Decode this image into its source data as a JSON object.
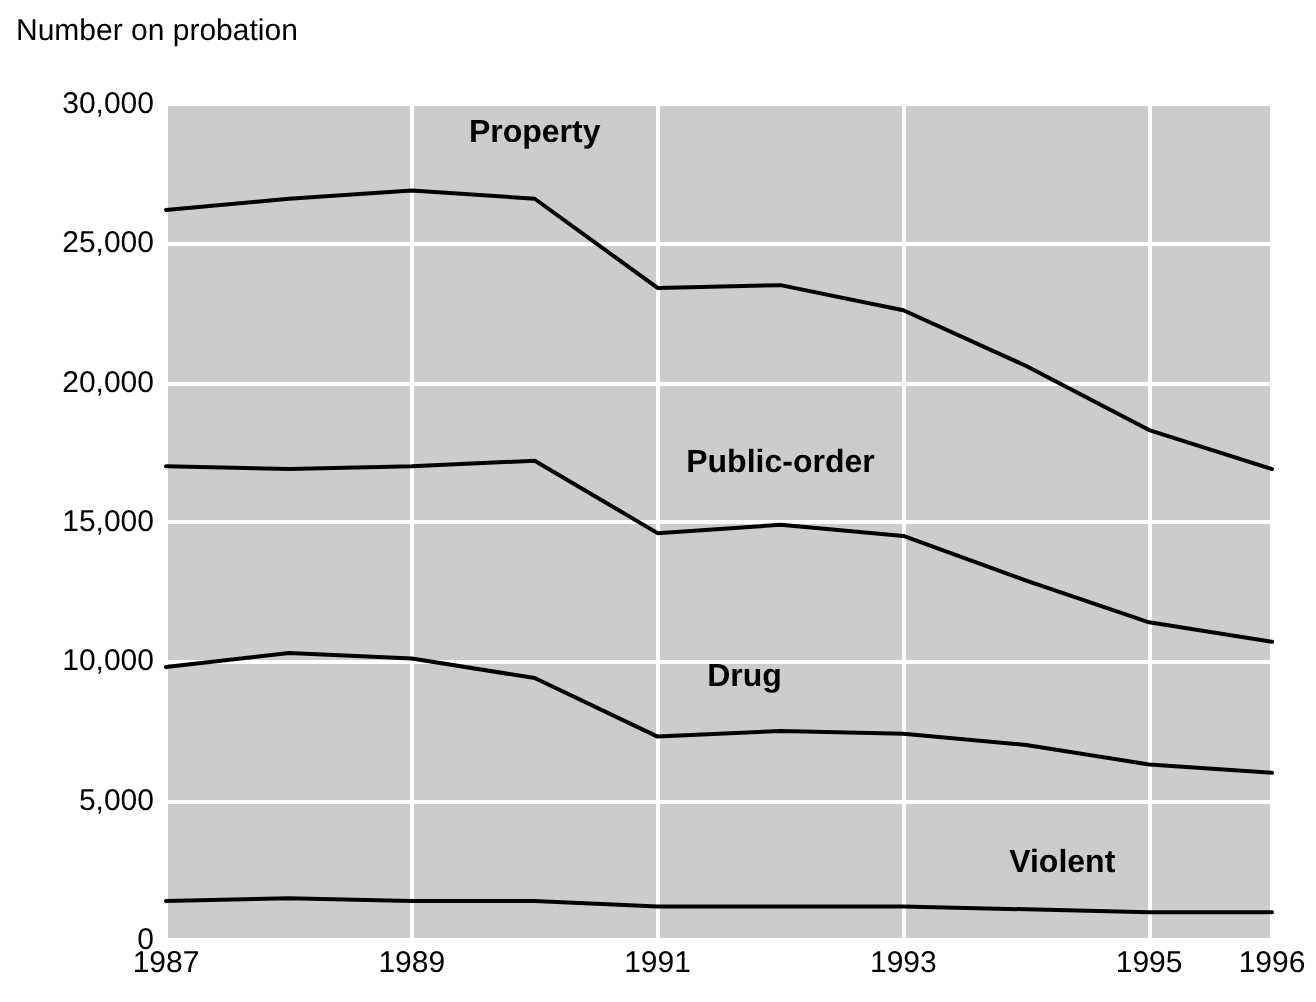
{
  "chart_data": {
    "type": "line",
    "ylabel": "Number on probation",
    "x": [
      1987,
      1988,
      1989,
      1990,
      1991,
      1992,
      1993,
      1994,
      1995,
      1996
    ],
    "series": [
      {
        "name": "Property",
        "color": "#000000",
        "values": [
          26200,
          26600,
          26900,
          26600,
          23400,
          23500,
          22600,
          20600,
          18300,
          16900
        ]
      },
      {
        "name": "Public-order",
        "color": "#000000",
        "values": [
          17000,
          16900,
          17000,
          17200,
          14600,
          14900,
          14500,
          12900,
          11400,
          10700
        ]
      },
      {
        "name": "Drug",
        "color": "#000000",
        "values": [
          9800,
          10300,
          10100,
          9400,
          7300,
          7500,
          7400,
          7000,
          6300,
          6000
        ]
      },
      {
        "name": "Violent",
        "color": "#000000",
        "values": [
          1400,
          1500,
          1400,
          1400,
          1200,
          1200,
          1200,
          1100,
          1000,
          1000
        ]
      }
    ],
    "xlim": [
      1987,
      1996
    ],
    "xticks": [
      1987,
      1989,
      1991,
      1993,
      1995,
      1996
    ],
    "ylim": [
      0,
      30000
    ],
    "yticks": [
      0,
      {
        "value": 5000,
        "label": "5,000"
      },
      {
        "value": 10000,
        "label": "10,000"
      },
      {
        "value": 15000,
        "label": "15,000"
      },
      {
        "value": 20000,
        "label": "20,000"
      },
      {
        "value": 25000,
        "label": "25,000"
      },
      {
        "value": 30000,
        "label": "30,000"
      }
    ],
    "grid": true,
    "legend": false,
    "marker": "none",
    "line_style": "solid"
  }
}
